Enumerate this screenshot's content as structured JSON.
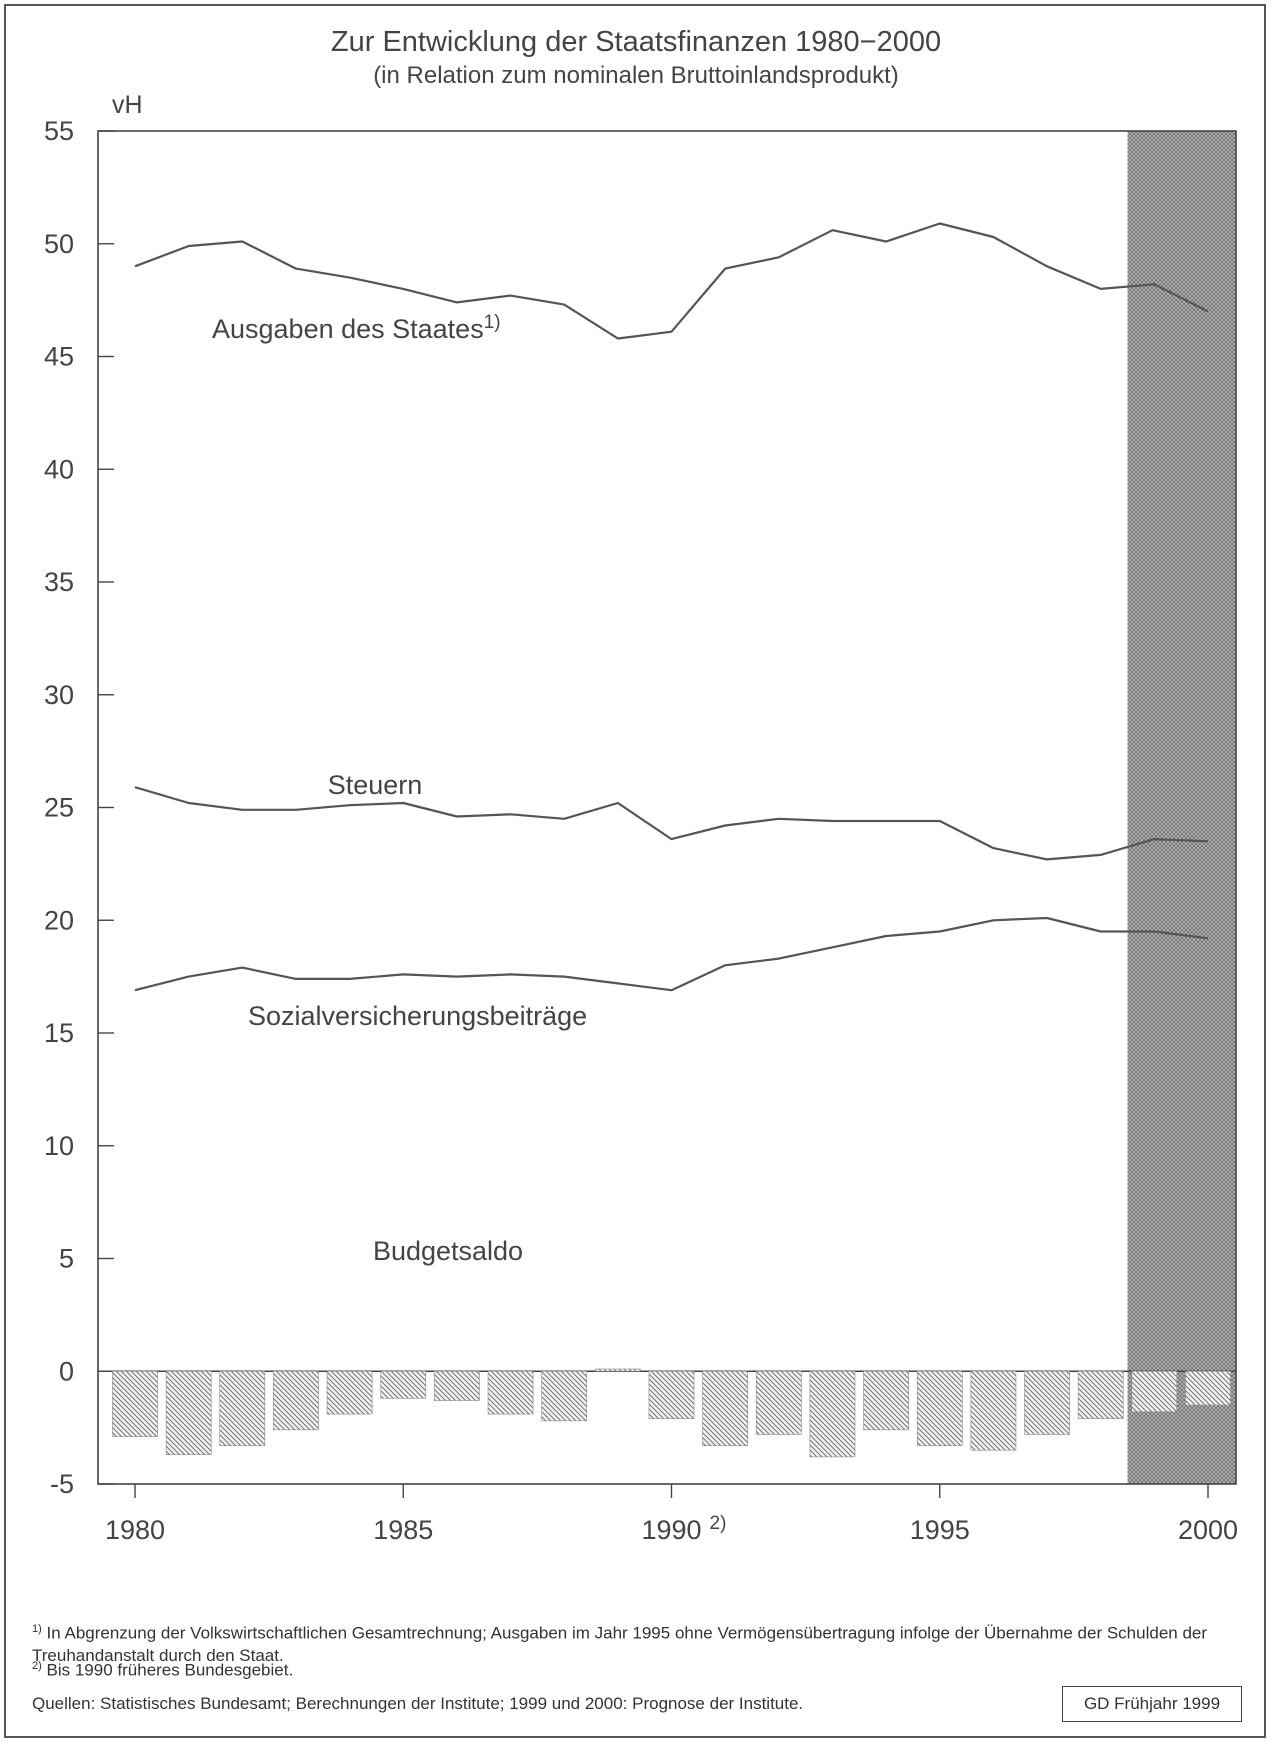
{
  "chart_data": {
    "type": "bar+line",
    "title": "Zur Entwicklung der Staatsfinanzen 1980−2000",
    "subtitle": "(in Relation zum nominalen Bruttoinlandsprodukt)",
    "ylabel": "vH",
    "ylim": [
      -5,
      55
    ],
    "yticks": [
      "-5",
      "0",
      "5",
      "10",
      "15",
      "20",
      "25",
      "30",
      "35",
      "40",
      "45",
      "50",
      "55"
    ],
    "xlim": [
      1980,
      2000
    ],
    "xticks": [
      {
        "year": 1980,
        "label": "1980",
        "mark": ""
      },
      {
        "year": 1985,
        "label": "1985",
        "mark": ""
      },
      {
        "year": 1990,
        "label": "1990",
        "mark": "2)"
      },
      {
        "year": 1995,
        "label": "1995",
        "mark": ""
      },
      {
        "year": 2000,
        "label": "2000",
        "mark": ""
      }
    ],
    "x": [
      1980,
      1981,
      1982,
      1983,
      1984,
      1985,
      1986,
      1987,
      1988,
      1989,
      1990,
      1991,
      1992,
      1993,
      1994,
      1995,
      1996,
      1997,
      1998,
      1999,
      2000
    ],
    "forecast_shading": {
      "from": 1999,
      "to": 2000
    },
    "series": [
      {
        "name": "Ausgaben des Staates",
        "name_mark": "1)",
        "type": "line",
        "values": [
          49.0,
          49.9,
          50.1,
          48.9,
          48.5,
          48.0,
          47.4,
          47.7,
          47.3,
          45.8,
          46.1,
          48.9,
          49.4,
          50.6,
          50.1,
          50.9,
          50.3,
          49.0,
          48.0,
          48.2,
          47.0
        ]
      },
      {
        "name": "Steuern",
        "type": "line",
        "values": [
          25.9,
          25.2,
          24.9,
          24.9,
          25.1,
          25.2,
          24.6,
          24.7,
          24.5,
          25.2,
          23.6,
          24.2,
          24.5,
          24.4,
          24.4,
          24.4,
          23.2,
          22.7,
          22.9,
          23.6,
          23.5
        ]
      },
      {
        "name": "Sozialversicherungsbeiträge",
        "type": "line",
        "values": [
          16.9,
          17.5,
          17.9,
          17.4,
          17.4,
          17.6,
          17.5,
          17.6,
          17.5,
          17.2,
          16.9,
          18.0,
          18.3,
          18.8,
          19.3,
          19.5,
          20.0,
          20.1,
          19.5,
          19.5,
          19.2
        ]
      },
      {
        "name": "Budgetsaldo",
        "type": "bar",
        "values": [
          -2.9,
          -3.7,
          -3.3,
          -2.6,
          -1.9,
          -1.2,
          -1.3,
          -1.9,
          -2.2,
          0.1,
          -2.1,
          -3.3,
          -2.8,
          -3.8,
          -2.6,
          -3.3,
          -3.5,
          -2.8,
          -2.1,
          -1.8,
          -1.5
        ]
      }
    ]
  },
  "footnotes": {
    "note1_mark": "1)",
    "note1_text": "In Abgrenzung der Volkswirtschaftlichen Gesamtrechnung; Ausgaben im Jahr 1995 ohne Vermögensübertragung infolge der Übernahme der Schulden der Treuhandanstalt durch den Staat.",
    "note2_mark": "2)",
    "note2_text": "Bis 1990 früheres Bundesgebiet.",
    "sources": "Quellen: Statistisches Bundesamt; Berechnungen der Institute; 1999 und 2000: Prognose der Institute."
  },
  "stamp": "GD Frühjahr 1999"
}
